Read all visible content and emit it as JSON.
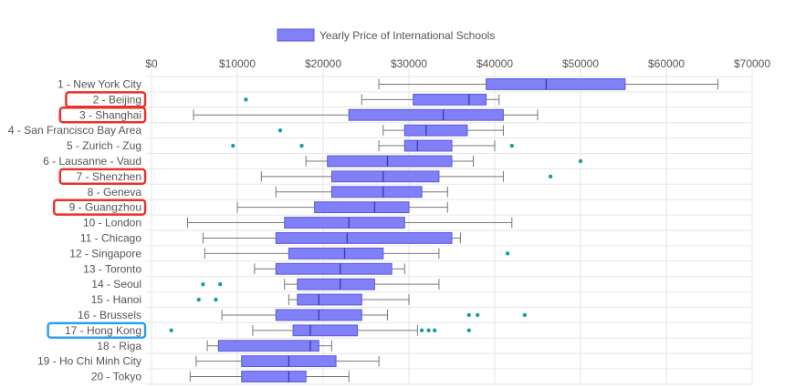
{
  "chart_data": {
    "type": "boxplot",
    "orientation": "horizontal",
    "legend": {
      "label": "Yearly Price of International Schools",
      "position": "top"
    },
    "xlim": [
      0,
      70000
    ],
    "x_ticks": [
      "$0",
      "$10000",
      "$20000",
      "$30000",
      "$40000",
      "$50000",
      "$60000",
      "$70000"
    ],
    "x_tick_values": [
      0,
      10000,
      20000,
      30000,
      40000,
      50000,
      60000,
      70000
    ],
    "grid": true,
    "colors": {
      "box_fill": "#8080f8",
      "box_stroke": "#5a5ad6",
      "whisker": "#777777",
      "outlier": "#1a9e9e",
      "grid": "#e6e6e6",
      "highlight_red": "#e8322a",
      "highlight_blue": "#2aa0e8"
    },
    "categories": [
      "1 - New York City",
      "2 - Beijing",
      "3 - Shanghai",
      "4 - San Francisco Bay Area",
      "5 - Zurich - Zug",
      "6 - Lausanne - Vaud",
      "7 - Shenzhen",
      "8 - Geneva",
      "9 - Guangzhou",
      "10 - London",
      "11 - Chicago",
      "12 - Singapore",
      "13 - Toronto",
      "14 - Seoul",
      "15 - Hanoi",
      "16 - Brussels",
      "17 - Hong Kong",
      "18 - Riga",
      "19 - Ho Chi Minh City",
      "20 - Tokyo"
    ],
    "boxes": [
      {
        "min": 26500,
        "q1": 39000,
        "median": 46000,
        "q3": 55200,
        "max": 66000,
        "outliers": []
      },
      {
        "min": 24500,
        "q1": 30500,
        "median": 37000,
        "q3": 39000,
        "max": 40500,
        "outliers": [
          11000
        ]
      },
      {
        "min": 4900,
        "q1": 23000,
        "median": 34000,
        "q3": 41000,
        "max": 45000,
        "outliers": []
      },
      {
        "min": 27000,
        "q1": 29500,
        "median": 32000,
        "q3": 36800,
        "max": 41000,
        "outliers": [
          15000
        ]
      },
      {
        "min": 26500,
        "q1": 29500,
        "median": 31000,
        "q3": 35000,
        "max": 40000,
        "outliers": [
          9500,
          17500,
          42000
        ]
      },
      {
        "min": 18000,
        "q1": 20500,
        "median": 27500,
        "q3": 35000,
        "max": 37500,
        "outliers": [
          50000
        ]
      },
      {
        "min": 12800,
        "q1": 21000,
        "median": 27000,
        "q3": 33500,
        "max": 41000,
        "outliers": [
          46500
        ]
      },
      {
        "min": 14500,
        "q1": 21000,
        "median": 27000,
        "q3": 31500,
        "max": 34500,
        "outliers": []
      },
      {
        "min": 10000,
        "q1": 19000,
        "median": 26000,
        "q3": 30000,
        "max": 34500,
        "outliers": []
      },
      {
        "min": 4200,
        "q1": 15500,
        "median": 23000,
        "q3": 29500,
        "max": 42000,
        "outliers": []
      },
      {
        "min": 6000,
        "q1": 14500,
        "median": 22800,
        "q3": 35000,
        "max": 36000,
        "outliers": []
      },
      {
        "min": 6200,
        "q1": 16000,
        "median": 22500,
        "q3": 27000,
        "max": 33500,
        "outliers": [
          41500
        ]
      },
      {
        "min": 12000,
        "q1": 14500,
        "median": 22000,
        "q3": 28000,
        "max": 29500,
        "outliers": []
      },
      {
        "min": 15500,
        "q1": 17000,
        "median": 22000,
        "q3": 26000,
        "max": 33500,
        "outliers": [
          6000,
          8000
        ]
      },
      {
        "min": 16000,
        "q1": 17000,
        "median": 19500,
        "q3": 24500,
        "max": 30000,
        "outliers": [
          5500,
          7500
        ]
      },
      {
        "min": 8200,
        "q1": 14500,
        "median": 19500,
        "q3": 24500,
        "max": 27500,
        "outliers": [
          37000,
          38000,
          43500
        ]
      },
      {
        "min": 11800,
        "q1": 16500,
        "median": 18500,
        "q3": 24000,
        "max": 31000,
        "outliers": [
          2300,
          31500,
          32300,
          33000,
          37000
        ]
      },
      {
        "min": 6500,
        "q1": 7800,
        "median": 18500,
        "q3": 19500,
        "max": 21000,
        "outliers": []
      },
      {
        "min": 5200,
        "q1": 10500,
        "median": 16000,
        "q3": 21500,
        "max": 26500,
        "outliers": []
      },
      {
        "min": 4500,
        "q1": 10500,
        "median": 16000,
        "q3": 18000,
        "max": 23000,
        "outliers": []
      }
    ],
    "highlighted": [
      {
        "index": 1,
        "color": "red"
      },
      {
        "index": 2,
        "color": "red"
      },
      {
        "index": 6,
        "color": "red"
      },
      {
        "index": 8,
        "color": "red"
      },
      {
        "index": 16,
        "color": "blue"
      }
    ]
  }
}
